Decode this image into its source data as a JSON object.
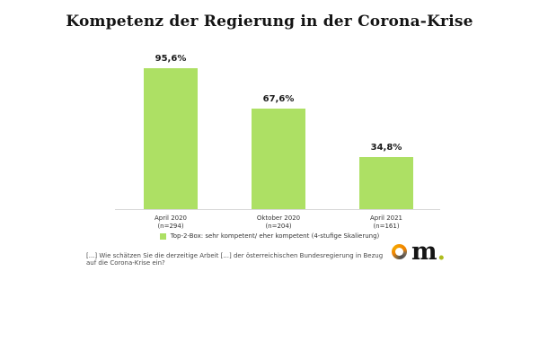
{
  "title": "Kompetenz der Regierung in der Corona-Krise",
  "colors": {
    "bar_green": "#ade064",
    "axis_gray": "#d8d8d8",
    "logo_orange": "#ef8200",
    "logo_dark": "#4c4c50",
    "logo_dot_green": "#aebc1e"
  },
  "chart_data": {
    "type": "bar",
    "categories": [
      "April 2020",
      "Oktober 2020",
      "April 2021"
    ],
    "sample_sizes": [
      "(n=294)",
      "(n=204)",
      "(n=161)"
    ],
    "values": [
      95.6,
      67.6,
      34.8
    ],
    "value_labels": [
      "95,6%",
      "67,6%",
      "34,8%"
    ],
    "title": "Kompetenz der Regierung in der Corona-Krise",
    "xlabel": "",
    "ylabel": "",
    "ylim": [
      0,
      100
    ],
    "grid": false,
    "legend_position": "bottom-center",
    "legend": "Top-2-Box: sehr kompetent/ eher kompetent (4-stufige Skalierung)",
    "bar_color": "#ade064"
  },
  "legend": {
    "label": "Top-2-Box: sehr kompetent/ eher kompetent (4-stufige Skalierung)"
  },
  "footnote": "[...] Wie schätzen Sie die derzeitige Arbeit [...] der österreichischen Bundesregierung in Bezug auf die Corona-Krise ein?",
  "logo": {
    "text": "m",
    "dot": "."
  }
}
